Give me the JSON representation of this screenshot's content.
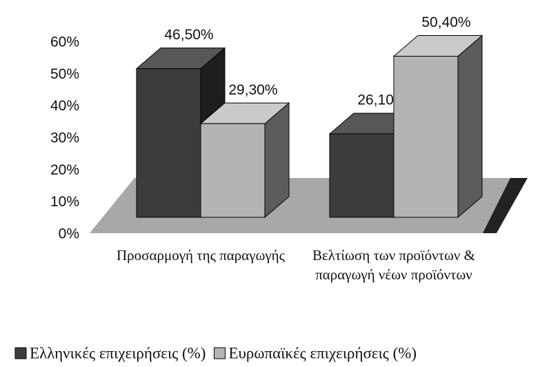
{
  "chart_data": {
    "type": "bar3d",
    "categories": [
      "Προσαρμογή της παραγωγής",
      "Βελτίωση των προϊόντων & παραγωγή νέων προϊόντων"
    ],
    "series": [
      {
        "name": "Ελληνικές επιχειρήσεις (%)",
        "color": "#3c3c3c",
        "values": [
          46.5,
          26.1
        ],
        "value_labels": [
          "46,50%",
          "26,10%"
        ]
      },
      {
        "name": "Ευρωπαϊκές επιχειρήσεις (%)",
        "color": "#b4b4b4",
        "values": [
          29.3,
          50.4
        ],
        "value_labels": [
          "29,30%",
          "50,40%"
        ]
      }
    ],
    "ylim": [
      0,
      60
    ],
    "yticks": [
      {
        "value": 0,
        "label": "0%"
      },
      {
        "value": 10,
        "label": "10%"
      },
      {
        "value": 20,
        "label": "20%"
      },
      {
        "value": 30,
        "label": "30%"
      },
      {
        "value": 40,
        "label": "40%"
      },
      {
        "value": 50,
        "label": "50%"
      },
      {
        "value": 60,
        "label": "60%"
      }
    ],
    "legend": "bottom"
  }
}
